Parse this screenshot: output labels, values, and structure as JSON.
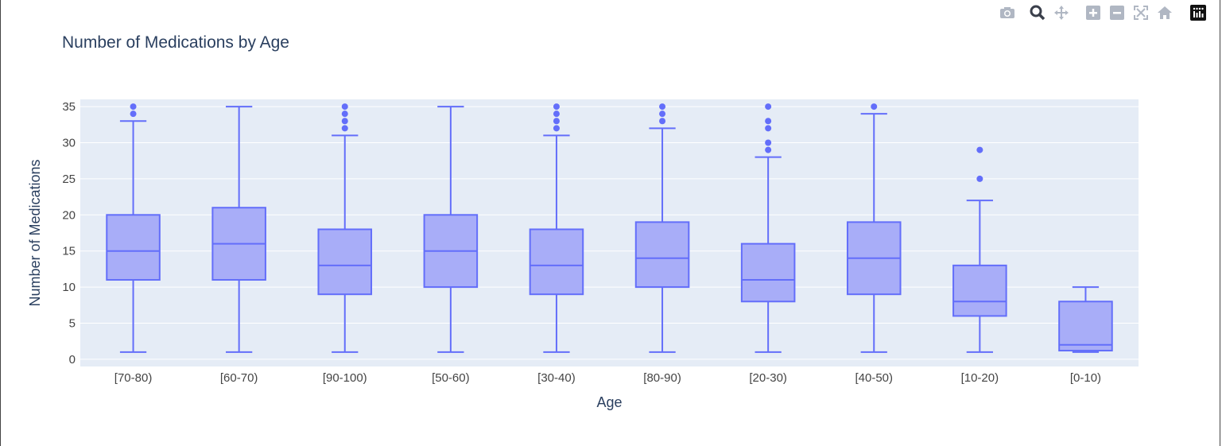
{
  "chart_data": {
    "type": "box",
    "title": "Number of Medications by Age",
    "xlabel": "Age",
    "ylabel": "Number of Medications",
    "ylim": [
      -1,
      36
    ],
    "yticks": [
      0,
      5,
      10,
      15,
      20,
      25,
      30,
      35
    ],
    "grid": true,
    "legend": "none",
    "colors": {
      "box_line": "#636efa",
      "box_fill": "#a8adf8",
      "plot_bg": "#e5ecf6",
      "grid": "#ffffff"
    },
    "categories": [
      "[70-80)",
      "[60-70)",
      "[90-100)",
      "[50-60)",
      "[30-40)",
      "[80-90)",
      "[20-30)",
      "[40-50)",
      "[10-20)",
      "[0-10)"
    ],
    "boxes": [
      {
        "min": 1,
        "q1": 11,
        "median": 15,
        "q3": 20,
        "max": 33,
        "outliers": [
          34,
          35
        ]
      },
      {
        "min": 1,
        "q1": 11,
        "median": 16,
        "q3": 21,
        "max": 35,
        "outliers": []
      },
      {
        "min": 1,
        "q1": 9,
        "median": 13,
        "q3": 18,
        "max": 31,
        "outliers": [
          32,
          33,
          34,
          35
        ]
      },
      {
        "min": 1,
        "q1": 10,
        "median": 15,
        "q3": 20,
        "max": 35,
        "outliers": []
      },
      {
        "min": 1,
        "q1": 9,
        "median": 13,
        "q3": 18,
        "max": 31,
        "outliers": [
          32,
          33,
          34,
          35
        ]
      },
      {
        "min": 1,
        "q1": 10,
        "median": 14,
        "q3": 19,
        "max": 32,
        "outliers": [
          33,
          34,
          35
        ]
      },
      {
        "min": 1,
        "q1": 8,
        "median": 11,
        "q3": 16,
        "max": 28,
        "outliers": [
          29,
          30,
          32,
          33,
          35
        ]
      },
      {
        "min": 1,
        "q1": 9,
        "median": 14,
        "q3": 19,
        "max": 34,
        "outliers": [
          35
        ]
      },
      {
        "min": 1,
        "q1": 6,
        "median": 8,
        "q3": 13,
        "max": 22,
        "outliers": [
          25,
          29
        ]
      },
      {
        "min": 1,
        "q1": 1.2,
        "median": 2,
        "q3": 8,
        "max": 10,
        "outliers": []
      }
    ]
  },
  "modebar": {
    "buttons": [
      {
        "name": "camera-icon",
        "glyph": "📷"
      },
      {
        "name": "zoom-icon",
        "glyph": "🔍"
      },
      {
        "name": "pan-icon",
        "glyph": "✥"
      },
      {
        "name": "zoom-in-icon",
        "glyph": "⊞"
      },
      {
        "name": "zoom-out-icon",
        "glyph": "⊟"
      },
      {
        "name": "autoscale-icon",
        "glyph": "⤧"
      },
      {
        "name": "reset-axes-icon",
        "glyph": "⌂"
      }
    ]
  }
}
